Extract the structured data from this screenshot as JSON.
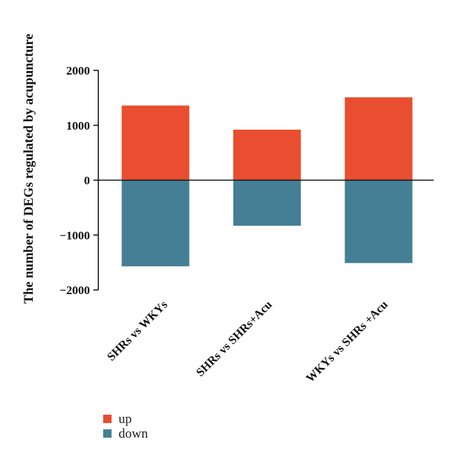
{
  "chart_data": {
    "type": "bar",
    "stacked": "diverging",
    "categories": [
      "SHRs vs WKYs",
      "SHRs vs SHRs+Acu",
      "WKYs vs SHRs +Acu"
    ],
    "series": [
      {
        "name": "up",
        "values": [
          1360,
          920,
          1510
        ],
        "color": "#e84e2f"
      },
      {
        "name": "down",
        "values": [
          -1570,
          -830,
          -1510
        ],
        "color": "#447f96"
      }
    ],
    "ylabel": "The number of DEGs regulated by acupuncture",
    "xlabel": "",
    "ylim": [
      -2000,
      2000
    ],
    "yticks": [
      2000,
      1000,
      0,
      -1000,
      -2000
    ],
    "ytick_labels": [
      "2000",
      "1000",
      "0",
      "−1000",
      "−2000"
    ],
    "grid": false,
    "legend_position": "bottom-left"
  }
}
